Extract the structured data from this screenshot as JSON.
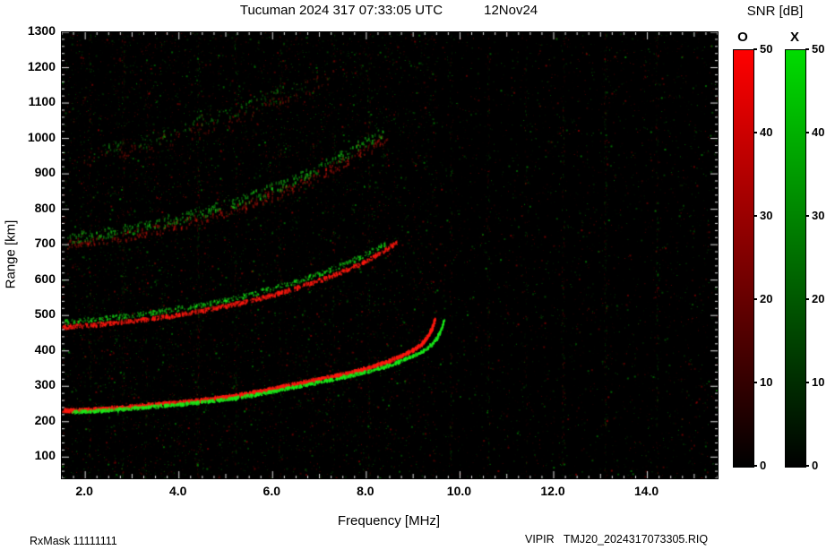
{
  "header": {
    "title": "Tucuman 2024 317 07:33:05 UTC",
    "date": "12Nov24"
  },
  "footer": {
    "rx_mask": "RxMask 11111111",
    "source": "VIPIR   TMJ20_2024317073305.RIQ"
  },
  "chart_data": {
    "type": "heatmap",
    "title": "Tucuman 2024 317 07:33:05 UTC",
    "subtitle": "12Nov24",
    "xlabel": "Frequency [MHz]",
    "ylabel": "Range [km]",
    "xlim": [
      1.5,
      15.5
    ],
    "ylim": [
      40,
      1300
    ],
    "xticks": [
      2.0,
      4.0,
      6.0,
      8.0,
      10.0,
      12.0,
      14.0
    ],
    "yticks": [
      100,
      200,
      300,
      400,
      500,
      600,
      700,
      800,
      900,
      1000,
      1100,
      1200,
      1300
    ],
    "x_minor_step": 0.25,
    "y_minor_step": 20,
    "grid": false,
    "background": "#000000",
    "legend": "SNR colorbars for O (red) and X (green) polarization echoes",
    "colorbar": {
      "title": "SNR [dB]",
      "min": 0,
      "max": 50,
      "ticks": [
        0,
        10,
        20,
        30,
        40,
        50
      ],
      "bars": [
        {
          "label": "O",
          "color_bottom": "#000000",
          "color_top": "#ff0000"
        },
        {
          "label": "X",
          "color_bottom": "#000000",
          "color_top": "#00dc00"
        }
      ]
    },
    "noise": {
      "count": 9000,
      "extra_left_count": 5000,
      "extra_left_fmax": 9.5,
      "rfi_freqs": [
        2.1,
        2.8,
        3.3,
        4.4,
        5.2,
        6.15,
        7.3,
        8.05,
        9.8,
        10.6,
        11.4,
        12.2,
        13.1,
        14.2
      ]
    },
    "traces": [
      {
        "id": "F-hop1-O",
        "mode": "O",
        "hop": 1,
        "width": 3.2,
        "jitter": 1.6,
        "density": 3.2,
        "alpha": 0.95,
        "points": [
          [
            1.5,
            230
          ],
          [
            2.0,
            233
          ],
          [
            2.5,
            237
          ],
          [
            3.0,
            242
          ],
          [
            3.5,
            248
          ],
          [
            4.0,
            254
          ],
          [
            4.5,
            261
          ],
          [
            5.0,
            269
          ],
          [
            5.5,
            280
          ],
          [
            6.0,
            293
          ],
          [
            6.5,
            306
          ],
          [
            7.0,
            320
          ],
          [
            7.5,
            334
          ],
          [
            8.0,
            350
          ],
          [
            8.4,
            367
          ],
          [
            8.7,
            383
          ],
          [
            9.0,
            402
          ],
          [
            9.2,
            422
          ],
          [
            9.32,
            444
          ],
          [
            9.4,
            466
          ],
          [
            9.45,
            488
          ]
        ]
      },
      {
        "id": "F-hop1-X",
        "mode": "X",
        "hop": 1,
        "width": 2.6,
        "jitter": 1.6,
        "density": 2.6,
        "alpha": 0.9,
        "points": [
          [
            1.7,
            227
          ],
          [
            2.2,
            230
          ],
          [
            2.7,
            234
          ],
          [
            3.2,
            239
          ],
          [
            3.7,
            245
          ],
          [
            4.2,
            251
          ],
          [
            4.7,
            258
          ],
          [
            5.2,
            266
          ],
          [
            5.7,
            277
          ],
          [
            6.2,
            290
          ],
          [
            6.7,
            303
          ],
          [
            7.2,
            317
          ],
          [
            7.7,
            331
          ],
          [
            8.2,
            347
          ],
          [
            8.6,
            364
          ],
          [
            8.9,
            380
          ],
          [
            9.2,
            399
          ],
          [
            9.4,
            419
          ],
          [
            9.52,
            441
          ],
          [
            9.6,
            463
          ],
          [
            9.65,
            485
          ]
        ]
      },
      {
        "id": "F-hop2-O",
        "mode": "O",
        "hop": 2,
        "width": 2.6,
        "jitter": 2.2,
        "density": 2.2,
        "alpha": 0.8,
        "points": [
          [
            1.5,
            466
          ],
          [
            2.0,
            471
          ],
          [
            2.5,
            477
          ],
          [
            3.0,
            484
          ],
          [
            3.5,
            492
          ],
          [
            4.0,
            502
          ],
          [
            4.5,
            513
          ],
          [
            5.0,
            526
          ],
          [
            5.5,
            541
          ],
          [
            6.0,
            558
          ],
          [
            6.5,
            577
          ],
          [
            7.0,
            599
          ],
          [
            7.4,
            619
          ],
          [
            7.8,
            641
          ],
          [
            8.1,
            661
          ],
          [
            8.4,
            684
          ],
          [
            8.65,
            708
          ]
        ]
      },
      {
        "id": "F-hop2-X",
        "mode": "X",
        "hop": 2,
        "width": 2.2,
        "jitter": 2.8,
        "density": 1.4,
        "alpha": 0.6,
        "points": [
          [
            1.5,
            481
          ],
          [
            2.0,
            486
          ],
          [
            2.5,
            492
          ],
          [
            3.0,
            500
          ],
          [
            3.5,
            509
          ],
          [
            4.0,
            519
          ],
          [
            4.5,
            530
          ],
          [
            5.0,
            543
          ],
          [
            5.5,
            558
          ],
          [
            6.0,
            576
          ],
          [
            6.5,
            595
          ],
          [
            7.0,
            617
          ],
          [
            7.4,
            638
          ],
          [
            7.8,
            660
          ],
          [
            8.1,
            680
          ],
          [
            8.4,
            703
          ]
        ]
      },
      {
        "id": "F-hop3-O",
        "mode": "O",
        "hop": 3,
        "width": 3.0,
        "jitter": 6.0,
        "density": 0.9,
        "alpha": 0.42,
        "points": [
          [
            1.5,
            700
          ],
          [
            2.0,
            707
          ],
          [
            2.5,
            716
          ],
          [
            3.0,
            727
          ],
          [
            3.5,
            740
          ],
          [
            4.0,
            755
          ],
          [
            4.5,
            772
          ],
          [
            5.0,
            791
          ],
          [
            5.5,
            813
          ],
          [
            6.0,
            838
          ],
          [
            6.5,
            866
          ],
          [
            7.0,
            897
          ],
          [
            7.5,
            931
          ],
          [
            8.0,
            968
          ],
          [
            8.4,
            1000
          ]
        ]
      },
      {
        "id": "F-hop3-X",
        "mode": "X",
        "hop": 3,
        "width": 3.0,
        "jitter": 6.0,
        "density": 0.9,
        "alpha": 0.5,
        "points": [
          [
            1.5,
            716
          ],
          [
            2.0,
            723
          ],
          [
            2.5,
            732
          ],
          [
            3.0,
            744
          ],
          [
            3.5,
            757
          ],
          [
            4.0,
            772
          ],
          [
            4.5,
            790
          ],
          [
            5.0,
            810
          ],
          [
            5.5,
            833
          ],
          [
            6.0,
            858
          ],
          [
            6.5,
            886
          ],
          [
            7.0,
            917
          ],
          [
            7.5,
            951
          ],
          [
            8.0,
            988
          ],
          [
            8.4,
            1020
          ]
        ]
      },
      {
        "id": "F-hop4-O",
        "mode": "O",
        "hop": 4,
        "width": 3.0,
        "jitter": 8.0,
        "density": 0.4,
        "alpha": 0.3,
        "points": [
          [
            2.0,
            935
          ],
          [
            2.8,
            958
          ],
          [
            3.6,
            986
          ],
          [
            4.4,
            1020
          ],
          [
            5.2,
            1058
          ],
          [
            6.0,
            1100
          ],
          [
            6.7,
            1140
          ],
          [
            7.3,
            1178
          ]
        ]
      },
      {
        "id": "F-hop4-X",
        "mode": "X",
        "hop": 4,
        "width": 3.0,
        "jitter": 8.0,
        "density": 0.4,
        "alpha": 0.35,
        "points": [
          [
            2.0,
            950
          ],
          [
            2.8,
            974
          ],
          [
            3.6,
            1003
          ],
          [
            4.4,
            1038
          ],
          [
            5.2,
            1077
          ],
          [
            6.0,
            1120
          ],
          [
            6.7,
            1160
          ]
        ]
      }
    ]
  }
}
